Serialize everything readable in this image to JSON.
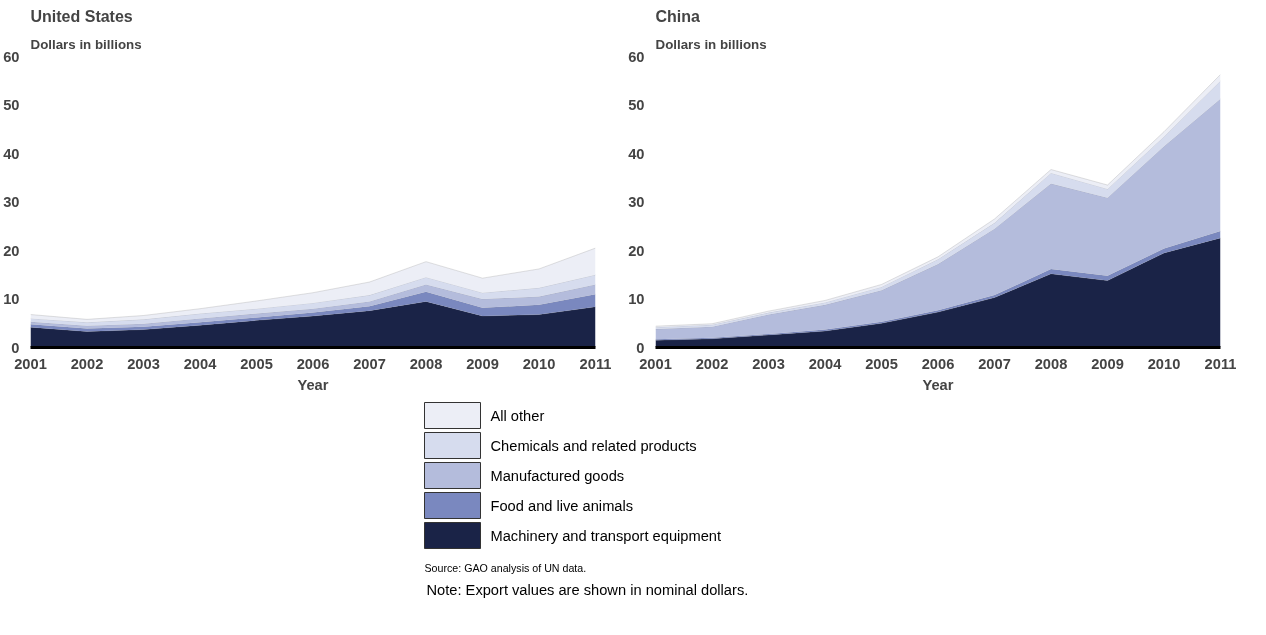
{
  "chart_data": [
    {
      "type": "area",
      "stacked": true,
      "title": "United States",
      "ylabel": "Dollars in billions",
      "xlabel": "Year",
      "x": [
        2001,
        2002,
        2003,
        2004,
        2005,
        2006,
        2007,
        2008,
        2009,
        2010,
        2011
      ],
      "xlim": [
        2001,
        2011
      ],
      "xticks": [
        2001,
        2002,
        2003,
        2004,
        2005,
        2006,
        2007,
        2008,
        2009,
        2010,
        2011
      ],
      "ylim": [
        0,
        60
      ],
      "yticks": [
        0,
        10,
        20,
        30,
        40,
        50,
        60
      ],
      "grid": false,
      "legend": "bottom",
      "series": [
        {
          "name": "Machinery and transport equipment",
          "color": "#1a2347",
          "values": [
            4.2,
            3.3,
            3.7,
            4.6,
            5.6,
            6.5,
            7.6,
            9.5,
            6.5,
            6.8,
            8.4
          ]
        },
        {
          "name": "Food and live animals",
          "color": "#7a88bf",
          "values": [
            0.6,
            0.6,
            0.6,
            0.6,
            0.6,
            0.7,
            0.9,
            2.0,
            1.7,
            2.0,
            2.6
          ]
        },
        {
          "name": "Manufactured goods",
          "color": "#b4bcdc",
          "values": [
            0.5,
            0.6,
            0.6,
            0.8,
            0.8,
            0.8,
            1.0,
            1.5,
            1.8,
            1.7,
            2.0
          ]
        },
        {
          "name": "Chemicals and related products",
          "color": "#d6dcee",
          "values": [
            0.7,
            0.7,
            0.9,
            1.0,
            1.0,
            1.2,
            1.3,
            1.5,
            1.3,
            1.8,
            2.0
          ]
        },
        {
          "name": "All other",
          "color": "#eceef6",
          "values": [
            0.8,
            0.6,
            0.8,
            1.0,
            1.6,
            2.1,
            2.7,
            3.2,
            3.0,
            3.9,
            5.5
          ]
        }
      ],
      "annotations": [
        "Source: GAO analysis of UN data.",
        "Note: Export values are shown in nominal dollars."
      ]
    },
    {
      "type": "area",
      "stacked": true,
      "title": "China",
      "ylabel": "Dollars in billions",
      "xlabel": "Year",
      "x": [
        2001,
        2002,
        2003,
        2004,
        2005,
        2006,
        2007,
        2008,
        2009,
        2010,
        2011
      ],
      "xlim": [
        2001,
        2011
      ],
      "xticks": [
        2001,
        2002,
        2003,
        2004,
        2005,
        2006,
        2007,
        2008,
        2009,
        2010,
        2011
      ],
      "ylim": [
        0,
        60
      ],
      "yticks": [
        0,
        10,
        20,
        30,
        40,
        50,
        60
      ],
      "grid": false,
      "legend": "bottom",
      "series": [
        {
          "name": "Machinery and transport equipment",
          "color": "#1a2347",
          "values": [
            1.5,
            1.8,
            2.6,
            3.4,
            5.0,
            7.3,
            10.3,
            15.2,
            13.8,
            19.5,
            22.6
          ]
        },
        {
          "name": "Food and live animals",
          "color": "#7a88bf",
          "values": [
            0.2,
            0.2,
            0.2,
            0.3,
            0.3,
            0.4,
            0.5,
            1.0,
            1.0,
            0.9,
            1.4
          ]
        },
        {
          "name": "Manufactured goods",
          "color": "#b4bcdc",
          "values": [
            2.1,
            2.3,
            4.0,
            5.1,
            6.5,
            9.5,
            13.7,
            17.6,
            16.1,
            21.1,
            27.3
          ]
        },
        {
          "name": "Chemicals and related products",
          "color": "#d6dcee",
          "values": [
            0.4,
            0.4,
            0.4,
            0.5,
            0.7,
            1.0,
            1.2,
            2.2,
            1.8,
            2.0,
            3.7
          ]
        },
        {
          "name": "All other",
          "color": "#eceef6",
          "values": [
            0.2,
            0.2,
            0.3,
            0.4,
            0.5,
            0.5,
            0.8,
            0.7,
            0.8,
            1.0,
            1.3
          ]
        }
      ]
    }
  ]
}
